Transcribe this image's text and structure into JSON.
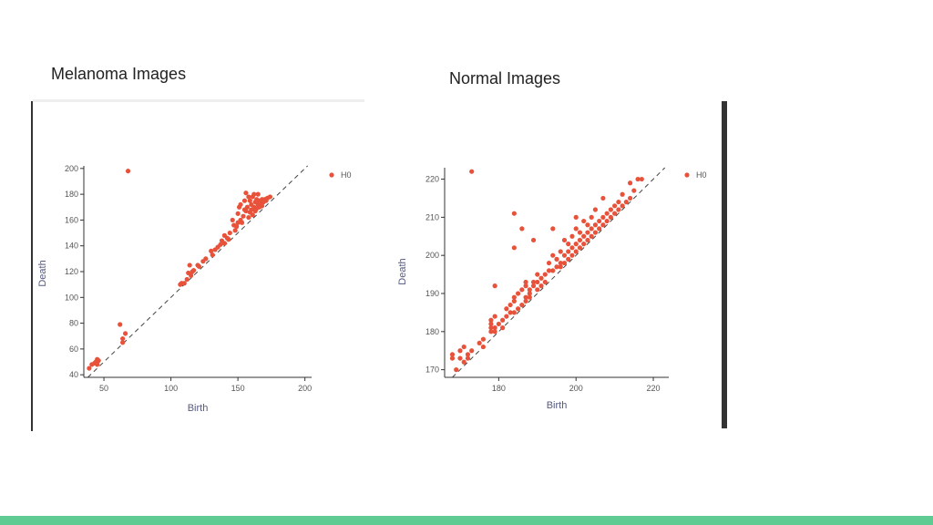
{
  "slide": {
    "left_title": "Melanoma Images",
    "right_title": "Normal Images"
  },
  "colors": {
    "point": "#e8523a",
    "axis": "#333333",
    "diagonal": "#444444",
    "accent_band": "#5ecb92"
  },
  "chart_data": [
    {
      "type": "scatter",
      "title": "",
      "xlabel": "Birth",
      "ylabel": "Death",
      "xlim": [
        35,
        205
      ],
      "ylim": [
        38,
        202
      ],
      "xticks": [
        50,
        100,
        150,
        200
      ],
      "yticks": [
        40,
        60,
        80,
        100,
        120,
        140,
        160,
        180,
        200
      ],
      "diagonal": true,
      "grid": false,
      "legend": {
        "position": "top-right",
        "entries": [
          "H0"
        ]
      },
      "series": [
        {
          "name": "H0",
          "points": [
            [
              39,
              45
            ],
            [
              41,
              48
            ],
            [
              43,
              49
            ],
            [
              44,
              50
            ],
            [
              45,
              52
            ],
            [
              45,
              48
            ],
            [
              46,
              51
            ],
            [
              62,
              79
            ],
            [
              64,
              68
            ],
            [
              64,
              65
            ],
            [
              66,
              72
            ],
            [
              68,
              198
            ],
            [
              107,
              110
            ],
            [
              108,
              111
            ],
            [
              110,
              111
            ],
            [
              112,
              114
            ],
            [
              113,
              119
            ],
            [
              114,
              125
            ],
            [
              115,
              117
            ],
            [
              116,
              120
            ],
            [
              117,
              121
            ],
            [
              120,
              125
            ],
            [
              121,
              124
            ],
            [
              124,
              128
            ],
            [
              126,
              130
            ],
            [
              130,
              136
            ],
            [
              131,
              133
            ],
            [
              133,
              137
            ],
            [
              135,
              139
            ],
            [
              137,
              141
            ],
            [
              138,
              144
            ],
            [
              140,
              142
            ],
            [
              140,
              148
            ],
            [
              142,
              146
            ],
            [
              143,
              145
            ],
            [
              144,
              150
            ],
            [
              146,
              160
            ],
            [
              147,
              156
            ],
            [
              148,
              152
            ],
            [
              149,
              155
            ],
            [
              150,
              165
            ],
            [
              150,
              158
            ],
            [
              151,
              170
            ],
            [
              152,
              172
            ],
            [
              152,
              160
            ],
            [
              153,
              158
            ],
            [
              154,
              163
            ],
            [
              155,
              168
            ],
            [
              155,
              175
            ],
            [
              156,
              167
            ],
            [
              156,
              181
            ],
            [
              157,
              170
            ],
            [
              158,
              178
            ],
            [
              158,
              162
            ],
            [
              159,
              175
            ],
            [
              159,
              166
            ],
            [
              160,
              172
            ],
            [
              160,
              168
            ],
            [
              161,
              178
            ],
            [
              161,
              164
            ],
            [
              162,
              170
            ],
            [
              162,
              180
            ],
            [
              163,
              167
            ],
            [
              163,
              174
            ],
            [
              164,
              176
            ],
            [
              164,
              169
            ],
            [
              165,
              172
            ],
            [
              165,
              180
            ],
            [
              166,
              170
            ],
            [
              166,
              175
            ],
            [
              167,
              173
            ],
            [
              168,
              176
            ],
            [
              168,
              171
            ],
            [
              169,
              174
            ],
            [
              170,
              176
            ],
            [
              171,
              175
            ],
            [
              172,
              177
            ],
            [
              174,
              178
            ]
          ]
        }
      ]
    },
    {
      "type": "scatter",
      "title": "",
      "xlabel": "Birth",
      "ylabel": "Death",
      "xlim": [
        166,
        224
      ],
      "ylim": [
        168,
        223
      ],
      "xticks": [
        180,
        200,
        220
      ],
      "yticks": [
        170,
        180,
        190,
        200,
        210,
        220
      ],
      "diagonal": true,
      "grid": false,
      "legend": {
        "position": "top-right",
        "entries": [
          "H0"
        ]
      },
      "series": [
        {
          "name": "H0",
          "points": [
            [
              168,
              174
            ],
            [
              168,
              173
            ],
            [
              169,
              170
            ],
            [
              170,
              175
            ],
            [
              170,
              173
            ],
            [
              171,
              176
            ],
            [
              171,
              172
            ],
            [
              172,
              174
            ],
            [
              172,
              173
            ],
            [
              173,
              222
            ],
            [
              173,
              175
            ],
            [
              175,
              177
            ],
            [
              176,
              176
            ],
            [
              176,
              178
            ],
            [
              178,
              180
            ],
            [
              178,
              181
            ],
            [
              178,
              182
            ],
            [
              178,
              183
            ],
            [
              179,
              180
            ],
            [
              179,
              181
            ],
            [
              179,
              184
            ],
            [
              179,
              192
            ],
            [
              180,
              182
            ],
            [
              181,
              181
            ],
            [
              181,
              183
            ],
            [
              182,
              184
            ],
            [
              182,
              186
            ],
            [
              183,
              185
            ],
            [
              183,
              187
            ],
            [
              184,
              202
            ],
            [
              184,
              211
            ],
            [
              184,
              185
            ],
            [
              184,
              188
            ],
            [
              184,
              189
            ],
            [
              185,
              186
            ],
            [
              185,
              190
            ],
            [
              186,
              187
            ],
            [
              186,
              191
            ],
            [
              186,
              207
            ],
            [
              187,
              189
            ],
            [
              187,
              188
            ],
            [
              187,
              192
            ],
            [
              187,
              193
            ],
            [
              188,
              189
            ],
            [
              188,
              191
            ],
            [
              188,
              190
            ],
            [
              189,
              192
            ],
            [
              189,
              204
            ],
            [
              189,
              193
            ],
            [
              190,
              191
            ],
            [
              190,
              193
            ],
            [
              190,
              195
            ],
            [
              191,
              192
            ],
            [
              191,
              194
            ],
            [
              192,
              193
            ],
            [
              192,
              195
            ],
            [
              193,
              196
            ],
            [
              193,
              198
            ],
            [
              194,
              196
            ],
            [
              194,
              207
            ],
            [
              194,
              200
            ],
            [
              195,
              197
            ],
            [
              195,
              199
            ],
            [
              196,
              197
            ],
            [
              196,
              198
            ],
            [
              196,
              201
            ],
            [
              197,
              198
            ],
            [
              197,
              200
            ],
            [
              197,
              204
            ],
            [
              198,
              199
            ],
            [
              198,
              201
            ],
            [
              198,
              203
            ],
            [
              199,
              200
            ],
            [
              199,
              202
            ],
            [
              199,
              205
            ],
            [
              200,
              201
            ],
            [
              200,
              203
            ],
            [
              200,
              207
            ],
            [
              200,
              210
            ],
            [
              201,
              202
            ],
            [
              201,
              204
            ],
            [
              201,
              206
            ],
            [
              202,
              203
            ],
            [
              202,
              205
            ],
            [
              202,
              209
            ],
            [
              203,
              204
            ],
            [
              203,
              206
            ],
            [
              203,
              208
            ],
            [
              204,
              205
            ],
            [
              204,
              207
            ],
            [
              204,
              210
            ],
            [
              205,
              206
            ],
            [
              205,
              208
            ],
            [
              205,
              212
            ],
            [
              206,
              207
            ],
            [
              206,
              209
            ],
            [
              207,
              208
            ],
            [
              207,
              210
            ],
            [
              207,
              215
            ],
            [
              208,
              209
            ],
            [
              208,
              211
            ],
            [
              209,
              210
            ],
            [
              209,
              212
            ],
            [
              210,
              211
            ],
            [
              210,
              213
            ],
            [
              211,
              212
            ],
            [
              211,
              214
            ],
            [
              212,
              213
            ],
            [
              212,
              216
            ],
            [
              213,
              214
            ],
            [
              214,
              215
            ],
            [
              214,
              219
            ],
            [
              215,
              217
            ],
            [
              216,
              220
            ],
            [
              217,
              220
            ]
          ]
        }
      ]
    }
  ]
}
